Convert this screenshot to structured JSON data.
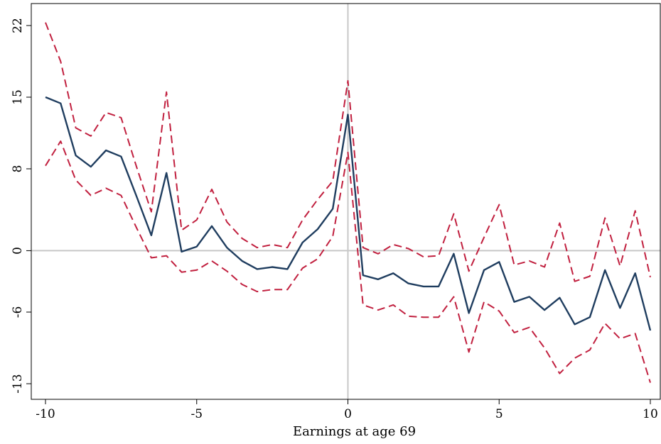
{
  "chart_data": {
    "type": "line",
    "title": "",
    "xlabel": "Earnings at age 69",
    "ylabel": "",
    "xlim": [
      -10,
      10
    ],
    "ylim": [
      -13,
      22
    ],
    "xticks": [
      -10,
      -5,
      0,
      5,
      10
    ],
    "xtick_labels": [
      "-10",
      "-5",
      "0",
      "5",
      "10"
    ],
    "yticks": [
      -13,
      -6,
      0,
      8,
      15,
      22
    ],
    "ytick_labels": [
      "-13",
      "-6",
      "0",
      "8",
      "15",
      "22"
    ],
    "reference_lines": {
      "x": 0,
      "y": 0
    },
    "legend": "none",
    "grid": false,
    "x": [
      -10,
      -9.5,
      -9,
      -8.5,
      -8,
      -7.5,
      -7,
      -6.5,
      -6,
      -5.5,
      -5,
      -4.5,
      -4,
      -3.5,
      -3,
      -2.5,
      -2,
      -1.5,
      -1,
      -0.5,
      0,
      0.5,
      1,
      1.5,
      2,
      2.5,
      3,
      3.5,
      4,
      4.5,
      5,
      5.5,
      6,
      6.5,
      7,
      7.5,
      8,
      8.5,
      9,
      9.5,
      10
    ],
    "series": [
      {
        "role": "estimate",
        "color": "#1f3d5f",
        "style": "solid",
        "values": [
          15.0,
          14.4,
          9.3,
          8.2,
          9.8,
          9.2,
          5.4,
          1.5,
          7.6,
          -0.1,
          0.4,
          2.4,
          0.3,
          -1.0,
          -1.8,
          -1.6,
          -1.8,
          0.8,
          2.1,
          4.1,
          13.3,
          -2.4,
          -2.8,
          -2.2,
          -3.2,
          -3.5,
          -3.5,
          -0.3,
          -6.1,
          -1.9,
          -1.1,
          -5.0,
          -4.5,
          -5.8,
          -4.6,
          -7.2,
          -6.5,
          -1.9,
          -5.6,
          -2.2,
          -7.8
        ]
      },
      {
        "role": "upper-ci",
        "color": "#c1203f",
        "style": "dashed",
        "values": [
          22.3,
          18.5,
          12.0,
          11.2,
          13.5,
          13.0,
          8.3,
          3.8,
          15.5,
          2.0,
          3.0,
          6.0,
          2.8,
          1.2,
          0.3,
          0.6,
          0.3,
          3.0,
          5.0,
          6.8,
          16.6,
          0.3,
          -0.3,
          0.6,
          0.2,
          -0.6,
          -0.5,
          3.6,
          -2.0,
          1.3,
          4.5,
          -1.4,
          -1.0,
          -1.6,
          2.7,
          -3.0,
          -2.5,
          3.2,
          -1.5,
          3.9,
          -2.6
        ]
      },
      {
        "role": "lower-ci",
        "color": "#c1203f",
        "style": "dashed",
        "values": [
          8.3,
          10.7,
          6.9,
          5.4,
          6.1,
          5.4,
          2.3,
          -0.7,
          -0.5,
          -2.1,
          -1.9,
          -1.0,
          -2.0,
          -3.3,
          -4.0,
          -3.8,
          -3.8,
          -1.7,
          -0.8,
          1.4,
          9.6,
          -5.3,
          -5.8,
          -5.3,
          -6.4,
          -6.5,
          -6.5,
          -4.5,
          -9.9,
          -5.0,
          -5.9,
          -8.0,
          -7.5,
          -9.5,
          -12.0,
          -10.5,
          -9.7,
          -7.1,
          -8.6,
          -8.1,
          -12.9
        ]
      }
    ]
  }
}
